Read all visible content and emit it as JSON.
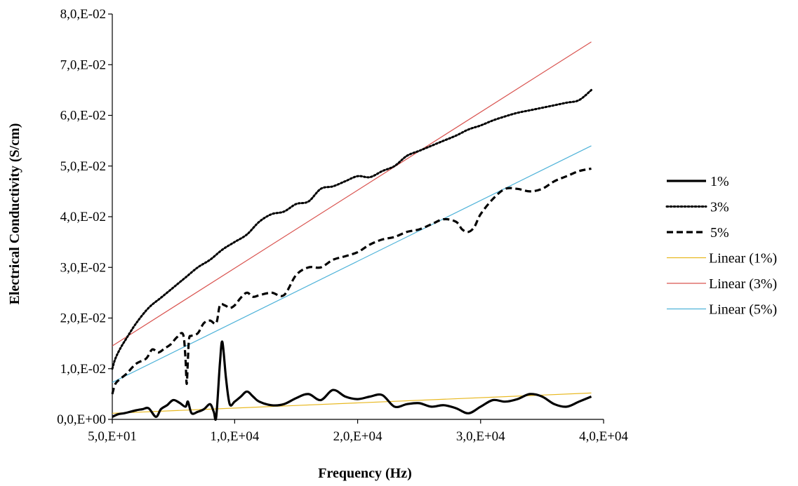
{
  "chart_data": {
    "type": "line",
    "title": "",
    "xlabel": "Frequency (Hz)",
    "ylabel": "Electrical Conductivity (S/cm)",
    "xlim": [
      50,
      40000
    ],
    "ylim": [
      0,
      0.08
    ],
    "x_ticks": [
      {
        "value": 50,
        "label": "5,0,E+01"
      },
      {
        "value": 10000,
        "label": "1,0,E+04"
      },
      {
        "value": 20000,
        "label": "2,0,E+04"
      },
      {
        "value": 30000,
        "label": "3,0,E+04"
      },
      {
        "value": 40000,
        "label": "4,0,E+04"
      }
    ],
    "y_ticks": [
      {
        "value": 0,
        "label": "0,0,E+00"
      },
      {
        "value": 0.01,
        "label": "1,0,E-02"
      },
      {
        "value": 0.02,
        "label": "2,0,E-02"
      },
      {
        "value": 0.03,
        "label": "3,0,E-02"
      },
      {
        "value": 0.04,
        "label": "4,0,E-02"
      },
      {
        "value": 0.05,
        "label": "5,0,E-02"
      },
      {
        "value": 0.06,
        "label": "6,0,E-02"
      },
      {
        "value": 0.07,
        "label": "7,0,E-02"
      },
      {
        "value": 0.08,
        "label": "8,0,E-02"
      }
    ],
    "grid": false,
    "legend_position": "right",
    "series": [
      {
        "name": "1%",
        "style": "solid",
        "color": "#000000",
        "x": [
          50,
          500,
          1000,
          1500,
          2000,
          2500,
          3000,
          3600,
          4000,
          4500,
          5000,
          5500,
          6000,
          6200,
          6500,
          7000,
          7500,
          8000,
          8300,
          8500,
          8800,
          9000,
          9300,
          9600,
          10000,
          10500,
          11000,
          11500,
          12000,
          13000,
          14000,
          15000,
          16000,
          17000,
          18000,
          19000,
          20000,
          21000,
          22000,
          23000,
          24000,
          25000,
          26000,
          27000,
          28000,
          29000,
          30000,
          31000,
          32000,
          33000,
          34000,
          35000,
          36000,
          37000,
          38000,
          39000
        ],
        "y": [
          0.0005,
          0.001,
          0.0012,
          0.0015,
          0.0018,
          0.002,
          0.0022,
          0.0005,
          0.002,
          0.0028,
          0.0038,
          0.0033,
          0.0025,
          0.0035,
          0.0012,
          0.0015,
          0.002,
          0.003,
          0.0015,
          0.0005,
          0.011,
          0.0153,
          0.008,
          0.003,
          0.0035,
          0.0045,
          0.0055,
          0.0045,
          0.0035,
          0.0028,
          0.003,
          0.0042,
          0.005,
          0.0038,
          0.0058,
          0.0045,
          0.004,
          0.0045,
          0.0048,
          0.0025,
          0.003,
          0.0032,
          0.0025,
          0.0028,
          0.0022,
          0.0012,
          0.0025,
          0.0038,
          0.0035,
          0.004,
          0.005,
          0.0045,
          0.003,
          0.0025,
          0.0035,
          0.0045
        ]
      },
      {
        "name": "3%",
        "style": "dotted",
        "color": "#000000",
        "x": [
          50,
          300,
          700,
          1200,
          2000,
          3000,
          4000,
          5000,
          6000,
          7000,
          8000,
          9000,
          10000,
          11000,
          12000,
          13000,
          14000,
          15000,
          16000,
          17000,
          18000,
          19000,
          20000,
          21000,
          22000,
          23000,
          24000,
          25000,
          26000,
          27000,
          28000,
          29000,
          30000,
          31000,
          32000,
          33000,
          34000,
          35000,
          36000,
          37000,
          38000,
          39000
        ],
        "y": [
          0.01,
          0.012,
          0.014,
          0.016,
          0.019,
          0.022,
          0.024,
          0.026,
          0.028,
          0.03,
          0.0315,
          0.0335,
          0.035,
          0.0365,
          0.039,
          0.0405,
          0.041,
          0.0425,
          0.043,
          0.0455,
          0.046,
          0.047,
          0.048,
          0.0478,
          0.049,
          0.05,
          0.052,
          0.053,
          0.054,
          0.055,
          0.056,
          0.0572,
          0.058,
          0.059,
          0.0598,
          0.0605,
          0.061,
          0.0615,
          0.062,
          0.0625,
          0.063,
          0.065
        ]
      },
      {
        "name": "5%",
        "style": "dashed",
        "color": "#000000",
        "x": [
          50,
          300,
          700,
          1200,
          2000,
          2800,
          3300,
          3800,
          4300,
          4800,
          5300,
          5800,
          6000,
          6100,
          6200,
          6300,
          6500,
          7000,
          7500,
          8000,
          8500,
          8800,
          9200,
          9600,
          10000,
          10500,
          11000,
          11500,
          12000,
          13000,
          14000,
          15000,
          16000,
          17000,
          18000,
          19000,
          20000,
          21000,
          22000,
          23000,
          24000,
          25000,
          26000,
          27000,
          28000,
          28500,
          29000,
          29500,
          30000,
          31000,
          32000,
          33000,
          34000,
          35000,
          36000,
          37000,
          38000,
          39000
        ],
        "y": [
          0.005,
          0.007,
          0.008,
          0.009,
          0.011,
          0.012,
          0.0138,
          0.0132,
          0.014,
          0.0148,
          0.0162,
          0.0168,
          0.012,
          0.007,
          0.012,
          0.016,
          0.0165,
          0.017,
          0.019,
          0.0195,
          0.019,
          0.0225,
          0.0225,
          0.022,
          0.0225,
          0.024,
          0.025,
          0.0242,
          0.0245,
          0.025,
          0.0245,
          0.0285,
          0.03,
          0.03,
          0.0315,
          0.0322,
          0.033,
          0.0345,
          0.0355,
          0.036,
          0.037,
          0.0375,
          0.0385,
          0.0395,
          0.039,
          0.0375,
          0.037,
          0.038,
          0.0405,
          0.0435,
          0.0455,
          0.0455,
          0.045,
          0.0455,
          0.047,
          0.048,
          0.049,
          0.0495
        ]
      },
      {
        "name": "Linear (1%)",
        "style": "trendline",
        "color": "#e8b820",
        "x": [
          50,
          39000
        ],
        "y": [
          0.0012,
          0.0052
        ]
      },
      {
        "name": "Linear (3%)",
        "style": "trendline",
        "color": "#d9534f",
        "x": [
          50,
          39000
        ],
        "y": [
          0.0145,
          0.0745
        ]
      },
      {
        "name": "Linear (5%)",
        "style": "trendline",
        "color": "#4fb3d9",
        "x": [
          50,
          39000
        ],
        "y": [
          0.0073,
          0.054
        ]
      }
    ]
  }
}
